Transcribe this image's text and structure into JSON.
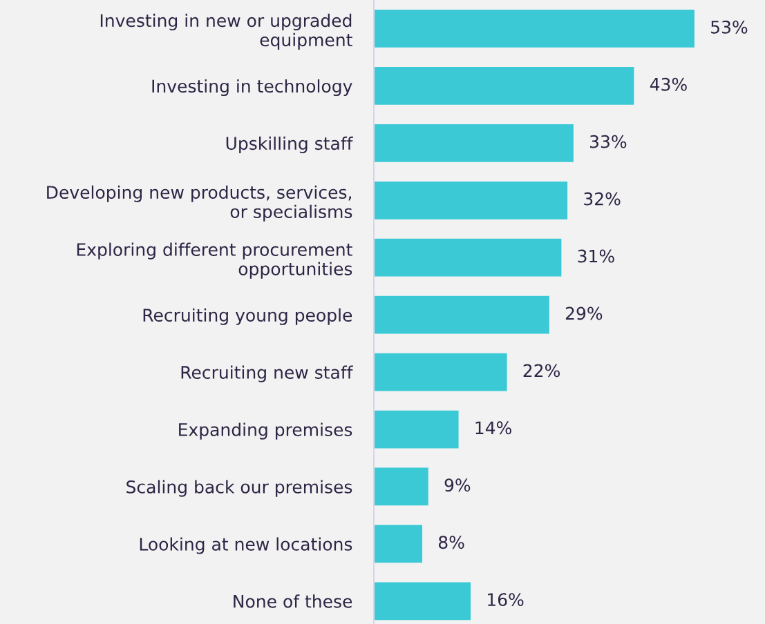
{
  "chart_data": {
    "type": "bar",
    "orientation": "horizontal",
    "categories": [
      "Investing in new or upgraded\nequipment",
      "Investing in technology",
      "Upskilling staff",
      "Developing new products, services,\nor specialisms",
      "Exploring different procurement\nopportunities",
      "Recruiting young people",
      "Recruiting new staff",
      "Expanding premises",
      "Scaling back our premises",
      "Looking at new locations",
      "None of these"
    ],
    "values": [
      53,
      43,
      33,
      32,
      31,
      29,
      22,
      14,
      9,
      8,
      16
    ],
    "value_labels": [
      "53%",
      "43%",
      "33%",
      "32%",
      "31%",
      "29%",
      "22%",
      "14%",
      "9%",
      "8%",
      "16%"
    ],
    "color": "#3cc9d6",
    "tick_labels": "y"
  }
}
